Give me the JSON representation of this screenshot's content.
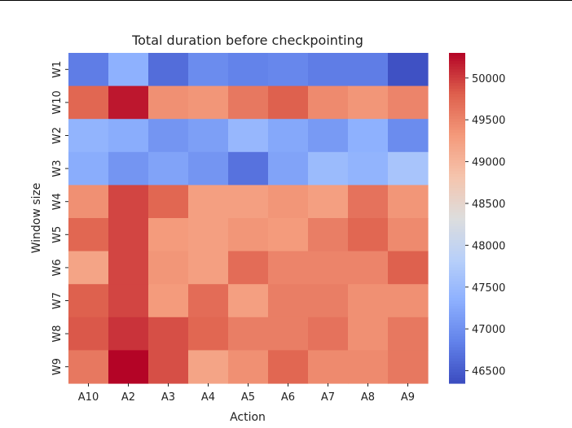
{
  "chart_data": {
    "type": "heatmap",
    "title": "Total duration before checkpointing",
    "xlabel": "Action",
    "ylabel": "Window size",
    "x_categories": [
      "A10",
      "A2",
      "A3",
      "A4",
      "A5",
      "A6",
      "A7",
      "A8",
      "A9"
    ],
    "y_categories": [
      "W1",
      "W10",
      "W2",
      "W3",
      "W4",
      "W5",
      "W6",
      "W7",
      "W8",
      "W9"
    ],
    "values": [
      [
        46800,
        47350,
        46650,
        46950,
        46850,
        46900,
        46800,
        46800,
        46400
      ],
      [
        49750,
        50200,
        49400,
        49350,
        49600,
        49800,
        49450,
        49350,
        49500
      ],
      [
        47400,
        47300,
        47050,
        47150,
        47450,
        47250,
        47100,
        47350,
        46950
      ],
      [
        47300,
        47050,
        47200,
        47050,
        46700,
        47200,
        47500,
        47400,
        47650
      ],
      [
        49400,
        49950,
        49750,
        49250,
        49250,
        49350,
        49250,
        49650,
        49350
      ],
      [
        49750,
        49950,
        49300,
        49250,
        49350,
        49300,
        49550,
        49750,
        49450
      ],
      [
        49200,
        49950,
        49350,
        49250,
        49700,
        49500,
        49500,
        49500,
        49800
      ],
      [
        49800,
        49950,
        49300,
        49700,
        49250,
        49550,
        49550,
        49400,
        49400
      ],
      [
        49850,
        50050,
        49900,
        49750,
        49550,
        49550,
        49650,
        49400,
        49600
      ],
      [
        49600,
        50300,
        49900,
        49200,
        49400,
        49750,
        49450,
        49450,
        49600
      ]
    ],
    "colorbar": {
      "colormap": "coolwarm",
      "vmin": 46350,
      "vmax": 50300,
      "ticks": [
        46500,
        47000,
        47500,
        48000,
        48500,
        49000,
        49500,
        50000
      ]
    }
  }
}
